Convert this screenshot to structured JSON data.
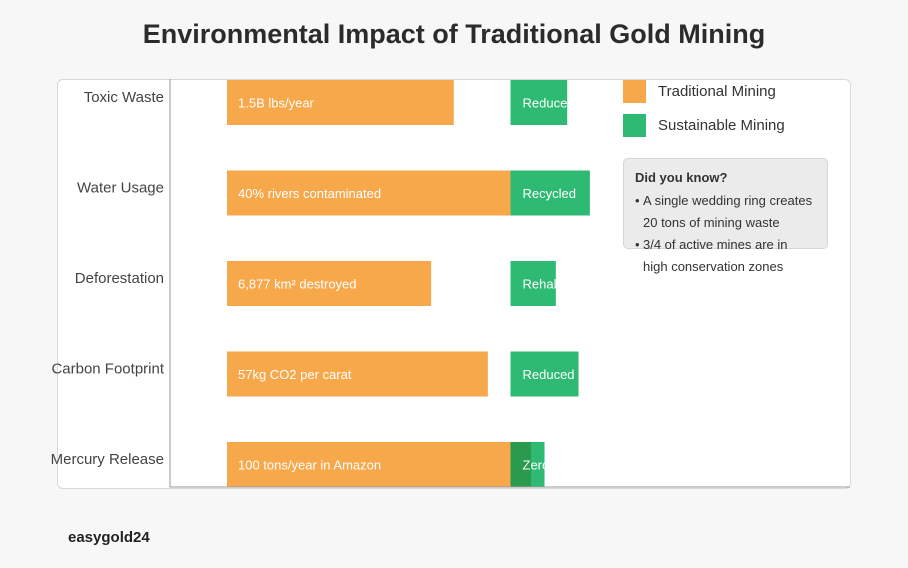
{
  "title": "Environmental Impact of Traditional Gold Mining",
  "brand": "easygold24",
  "colors": {
    "traditional": "#f7a84b",
    "sustainable": "#2fba73",
    "sustainable_dark": "#2a9a4e"
  },
  "legend": {
    "items": [
      {
        "label": "Traditional Mining"
      },
      {
        "label": "Sustainable Mining"
      }
    ]
  },
  "fact_box": {
    "title": "Did you know?",
    "bullet": "•",
    "lines": [
      {
        "bullet": true,
        "text": "A single wedding ring creates"
      },
      {
        "bullet": false,
        "text": "20 tons of mining waste"
      },
      {
        "bullet": true,
        "text": "3/4 of active mines are in"
      },
      {
        "bullet": false,
        "text": "high conservation zones"
      }
    ]
  },
  "chart_data": {
    "type": "bar",
    "orientation": "horizontal",
    "categories": [
      "Toxic Waste",
      "Water Usage",
      "Deforestation",
      "Carbon Footprint",
      "Mercury Release"
    ],
    "series": [
      {
        "name": "Traditional Mining",
        "values": [
          40,
          50,
          36,
          46,
          50
        ],
        "labels": [
          "1.5B lbs/year",
          "40% rivers contaminated",
          "6,877 km² destroyed",
          "57kg CO2 per carat",
          "100 tons/year in Amazon"
        ]
      },
      {
        "name": "Sustainable Mining",
        "values": [
          10,
          14,
          8,
          12,
          6
        ],
        "labels": [
          "Reduced",
          "Recycled",
          "Rehab",
          "Reduced",
          "Zero"
        ]
      }
    ],
    "xlim": [
      0,
      100
    ],
    "legend_position": "top-right",
    "grid": false
  }
}
